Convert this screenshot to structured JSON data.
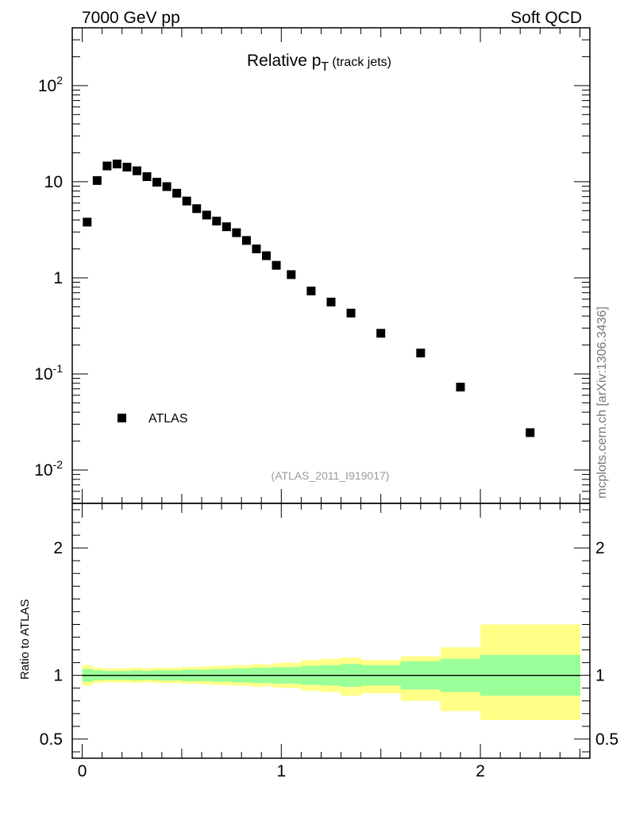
{
  "header": {
    "left": "7000 GeV pp",
    "right": "Soft QCD"
  },
  "side_label": "mcplots.cern.ch [arXiv:1306.3436]",
  "colors": {
    "yellow_band": "#ffff88",
    "green_band": "#99ff99",
    "marker": "#000000"
  },
  "chart_data": [
    {
      "type": "scatter",
      "title": "Relative p",
      "title_subscript": "T",
      "title_suffix": " (track jets)",
      "reference": "(ATLAS_2011_I919017)",
      "yscale": "log",
      "ylim": [
        0.0045,
        400
      ],
      "xlim": [
        -0.05,
        2.55
      ],
      "ytick_labels": [
        {
          "base": "10",
          "exp": "-2",
          "value": 0.01
        },
        {
          "base": "10",
          "exp": "-1",
          "value": 0.1
        },
        {
          "base": "1",
          "exp": "",
          "value": 1
        },
        {
          "base": "10",
          "exp": "",
          "value": 10
        },
        {
          "base": "10",
          "exp": "2",
          "value": 100
        }
      ],
      "legend": {
        "label": "ATLAS",
        "marker": "square",
        "position": "bottom-left"
      },
      "series": [
        {
          "name": "ATLAS",
          "x": [
            0.025,
            0.075,
            0.125,
            0.175,
            0.225,
            0.275,
            0.325,
            0.375,
            0.425,
            0.475,
            0.525,
            0.575,
            0.625,
            0.675,
            0.725,
            0.775,
            0.825,
            0.875,
            0.925,
            0.975,
            1.05,
            1.15,
            1.25,
            1.35,
            1.5,
            1.7,
            1.9,
            2.25
          ],
          "y": [
            3.8,
            10.3,
            14.6,
            15.3,
            14.2,
            13.0,
            11.3,
            9.9,
            8.9,
            7.6,
            6.3,
            5.25,
            4.5,
            3.9,
            3.4,
            2.95,
            2.45,
            2.0,
            1.7,
            1.35,
            1.08,
            0.73,
            0.56,
            0.43,
            0.265,
            0.165,
            0.073,
            0.0245
          ]
        }
      ]
    },
    {
      "type": "area",
      "ylabel": "Ratio to ATLAS",
      "ylim": [
        0.35,
        2.35
      ],
      "xlim": [
        -0.05,
        2.55
      ],
      "xtick_labels": [
        "0",
        "1",
        "2"
      ],
      "xtick_values": [
        0,
        1,
        2
      ],
      "ytick_labels": [
        "0.5",
        "1",
        "2"
      ],
      "ytick_values": [
        0.5,
        1,
        2
      ],
      "reference_line": 1,
      "bins": [
        {
          "lo": 0.0,
          "hi": 0.05,
          "y_lo": 0.92,
          "y_hi": 1.08,
          "g_lo": 0.95,
          "g_hi": 1.05
        },
        {
          "lo": 0.05,
          "hi": 0.1,
          "y_lo": 0.94,
          "y_hi": 1.06,
          "g_lo": 0.96,
          "g_hi": 1.04
        },
        {
          "lo": 0.1,
          "hi": 0.15,
          "y_lo": 0.945,
          "y_hi": 1.055,
          "g_lo": 0.965,
          "g_hi": 1.035
        },
        {
          "lo": 0.15,
          "hi": 0.2,
          "y_lo": 0.945,
          "y_hi": 1.055,
          "g_lo": 0.965,
          "g_hi": 1.035
        },
        {
          "lo": 0.2,
          "hi": 0.25,
          "y_lo": 0.945,
          "y_hi": 1.055,
          "g_lo": 0.965,
          "g_hi": 1.035
        },
        {
          "lo": 0.25,
          "hi": 0.3,
          "y_lo": 0.94,
          "y_hi": 1.06,
          "g_lo": 0.96,
          "g_hi": 1.04
        },
        {
          "lo": 0.3,
          "hi": 0.35,
          "y_lo": 0.945,
          "y_hi": 1.055,
          "g_lo": 0.965,
          "g_hi": 1.035
        },
        {
          "lo": 0.35,
          "hi": 0.4,
          "y_lo": 0.94,
          "y_hi": 1.06,
          "g_lo": 0.96,
          "g_hi": 1.04
        },
        {
          "lo": 0.4,
          "hi": 0.45,
          "y_lo": 0.94,
          "y_hi": 1.06,
          "g_lo": 0.96,
          "g_hi": 1.04
        },
        {
          "lo": 0.45,
          "hi": 0.5,
          "y_lo": 0.94,
          "y_hi": 1.06,
          "g_lo": 0.96,
          "g_hi": 1.04
        },
        {
          "lo": 0.5,
          "hi": 0.55,
          "y_lo": 0.935,
          "y_hi": 1.065,
          "g_lo": 0.955,
          "g_hi": 1.045
        },
        {
          "lo": 0.55,
          "hi": 0.6,
          "y_lo": 0.935,
          "y_hi": 1.065,
          "g_lo": 0.955,
          "g_hi": 1.045
        },
        {
          "lo": 0.6,
          "hi": 0.65,
          "y_lo": 0.93,
          "y_hi": 1.07,
          "g_lo": 0.955,
          "g_hi": 1.045
        },
        {
          "lo": 0.65,
          "hi": 0.7,
          "y_lo": 0.925,
          "y_hi": 1.075,
          "g_lo": 0.95,
          "g_hi": 1.05
        },
        {
          "lo": 0.7,
          "hi": 0.75,
          "y_lo": 0.925,
          "y_hi": 1.075,
          "g_lo": 0.95,
          "g_hi": 1.05
        },
        {
          "lo": 0.75,
          "hi": 0.8,
          "y_lo": 0.92,
          "y_hi": 1.08,
          "g_lo": 0.945,
          "g_hi": 1.055
        },
        {
          "lo": 0.8,
          "hi": 0.85,
          "y_lo": 0.92,
          "y_hi": 1.08,
          "g_lo": 0.945,
          "g_hi": 1.055
        },
        {
          "lo": 0.85,
          "hi": 0.9,
          "y_lo": 0.91,
          "y_hi": 1.09,
          "g_lo": 0.94,
          "g_hi": 1.06
        },
        {
          "lo": 0.9,
          "hi": 0.95,
          "y_lo": 0.915,
          "y_hi": 1.085,
          "g_lo": 0.94,
          "g_hi": 1.06
        },
        {
          "lo": 0.95,
          "hi": 1.0,
          "y_lo": 0.905,
          "y_hi": 1.095,
          "g_lo": 0.935,
          "g_hi": 1.065
        },
        {
          "lo": 1.0,
          "hi": 1.1,
          "y_lo": 0.9,
          "y_hi": 1.1,
          "g_lo": 0.935,
          "g_hi": 1.065
        },
        {
          "lo": 1.1,
          "hi": 1.2,
          "y_lo": 0.88,
          "y_hi": 1.12,
          "g_lo": 0.925,
          "g_hi": 1.075
        },
        {
          "lo": 1.2,
          "hi": 1.3,
          "y_lo": 0.87,
          "y_hi": 1.13,
          "g_lo": 0.92,
          "g_hi": 1.08
        },
        {
          "lo": 1.3,
          "hi": 1.4,
          "y_lo": 0.84,
          "y_hi": 1.14,
          "g_lo": 0.91,
          "g_hi": 1.09
        },
        {
          "lo": 1.4,
          "hi": 1.6,
          "y_lo": 0.86,
          "y_hi": 1.12,
          "g_lo": 0.92,
          "g_hi": 1.08
        },
        {
          "lo": 1.6,
          "hi": 1.8,
          "y_lo": 0.8,
          "y_hi": 1.15,
          "g_lo": 0.89,
          "g_hi": 1.11
        },
        {
          "lo": 1.8,
          "hi": 2.0,
          "y_lo": 0.72,
          "y_hi": 1.22,
          "g_lo": 0.87,
          "g_hi": 1.13
        },
        {
          "lo": 2.0,
          "hi": 2.5,
          "y_lo": 0.65,
          "y_hi": 1.4,
          "g_lo": 0.84,
          "g_hi": 1.16
        }
      ]
    }
  ]
}
